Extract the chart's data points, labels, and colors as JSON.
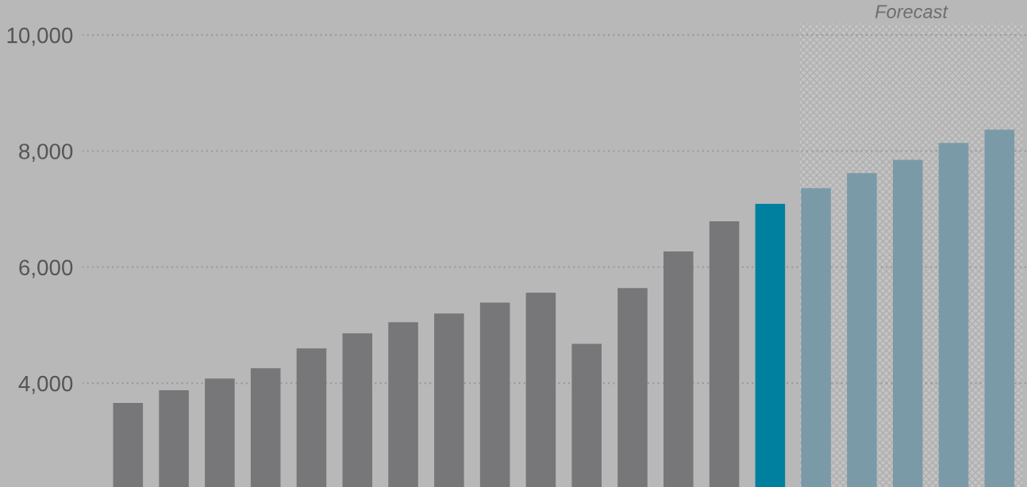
{
  "chart_data": {
    "type": "bar",
    "categories": [
      null,
      null,
      null,
      null,
      null,
      null,
      null,
      null,
      null,
      null,
      null,
      null,
      null,
      null,
      null,
      null,
      null,
      null,
      null,
      null
    ],
    "values": [
      3660,
      3880,
      4080,
      4260,
      4600,
      4860,
      5050,
      5200,
      5390,
      5560,
      4680,
      5640,
      6270,
      6790,
      7090,
      7360,
      7620,
      7850,
      8140,
      8370
    ],
    "colors": [
      "#77777a",
      "#77777a",
      "#77777a",
      "#77777a",
      "#77777a",
      "#77777a",
      "#77777a",
      "#77777a",
      "#77777a",
      "#77777a",
      "#77777a",
      "#77777a",
      "#77777a",
      "#77777a",
      "#00809f",
      "#7a9aa8",
      "#7a9aa8",
      "#7a9aa8",
      "#7a9aa8",
      "#7a9aa8"
    ],
    "ylim": [
      2212,
      10200
    ],
    "yticks": [
      {
        "value": 4000,
        "label": "4,000"
      },
      {
        "value": 6000,
        "label": "6,000"
      },
      {
        "value": 8000,
        "label": "8,000"
      },
      {
        "value": 10000,
        "label": "10,000"
      }
    ],
    "tick_labels": "y",
    "grid": "y",
    "annotations": [
      "Forecast"
    ]
  }
}
